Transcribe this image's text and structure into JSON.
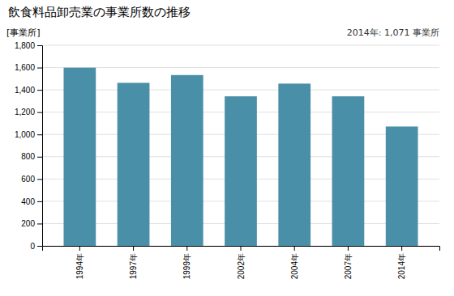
{
  "chart_data": {
    "type": "bar",
    "title": "飲食料品卸売業の事業所数の推移",
    "ylabel": "[事業所]",
    "annotation": "2014年: 1,071 事業所",
    "categories": [
      "1994年",
      "1997年",
      "1999年",
      "2002年",
      "2004年",
      "2007年",
      "2014年"
    ],
    "values": [
      1599,
      1463,
      1533,
      1342,
      1456,
      1342,
      1071
    ],
    "color": "#4a8fa8",
    "ylim": [
      0,
      1800
    ],
    "yticks": [
      0,
      200,
      400,
      600,
      800,
      {
        "value": 1000,
        "label": "1,000"
      },
      {
        "value": 1200,
        "label": "1,200"
      },
      {
        "value": 1400,
        "label": "1,400"
      },
      {
        "value": 1600,
        "label": "1,600"
      },
      {
        "value": 1800,
        "label": "1,800"
      }
    ],
    "grid": true
  }
}
